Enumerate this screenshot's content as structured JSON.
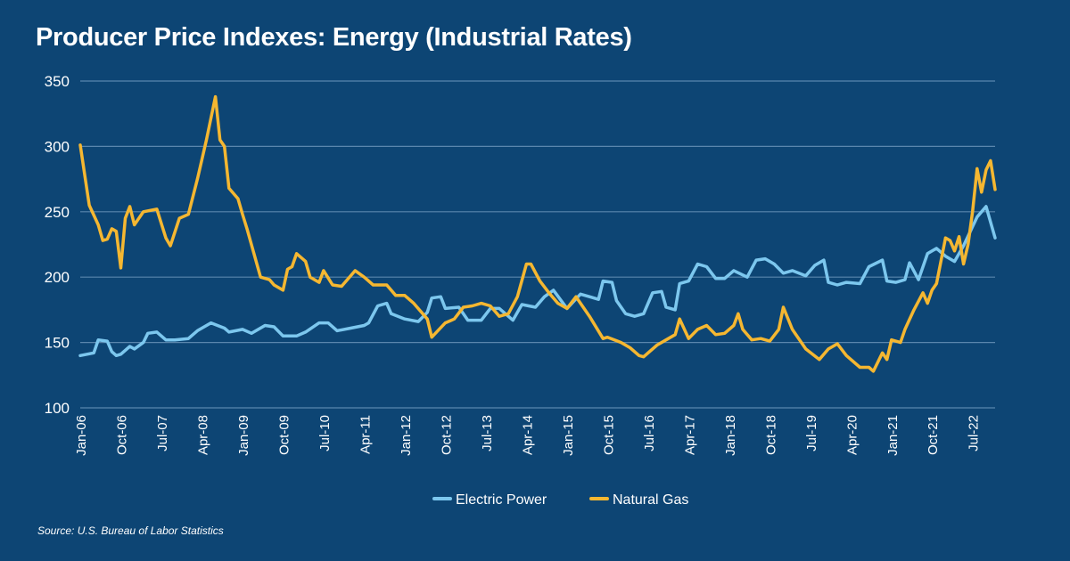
{
  "title": "Producer Price Indexes: Energy (Industrial Rates)",
  "source": "Source: U.S. Bureau of Labor Statistics",
  "colors": {
    "background": "#0d4574",
    "grid": "#5a86ad",
    "electric": "#7cc7ee",
    "gas": "#f5b731"
  },
  "chart_data": {
    "type": "line",
    "title": "Producer Price Indexes: Energy (Industrial Rates)",
    "xlabel": "",
    "ylabel": "",
    "ylim": [
      100,
      350
    ],
    "yticks": [
      100,
      150,
      200,
      250,
      300,
      350
    ],
    "grid": true,
    "legend_position": "bottom-center",
    "x_start": "Jan-06",
    "x_end": "Dec-22",
    "x_ticks": [
      "Jan-06",
      "Oct-06",
      "Jul-07",
      "Apr-08",
      "Jan-09",
      "Oct-09",
      "Jul-10",
      "Apr-11",
      "Jan-12",
      "Oct-12",
      "Jul-13",
      "Apr-14",
      "Jan-15",
      "Oct-15",
      "Jul-16",
      "Apr-17",
      "Jan-18",
      "Oct-18",
      "Jul-19",
      "Apr-20",
      "Jan-21",
      "Oct-21",
      "Jul-22"
    ],
    "series": [
      {
        "name": "Electric Power",
        "color": "#7cc7ee",
        "points": [
          [
            "Jan-06",
            140
          ],
          [
            "Apr-06",
            142
          ],
          [
            "May-06",
            152
          ],
          [
            "Jul-06",
            151
          ],
          [
            "Aug-06",
            143
          ],
          [
            "Sep-06",
            140
          ],
          [
            "Oct-06",
            141
          ],
          [
            "Dec-06",
            147
          ],
          [
            "Jan-07",
            145
          ],
          [
            "Mar-07",
            150
          ],
          [
            "Apr-07",
            157
          ],
          [
            "Jun-07",
            158
          ],
          [
            "Aug-07",
            152
          ],
          [
            "Oct-07",
            152
          ],
          [
            "Jan-08",
            153
          ],
          [
            "Mar-08",
            159
          ],
          [
            "Jun-08",
            165
          ],
          [
            "Sep-08",
            161
          ],
          [
            "Oct-08",
            158
          ],
          [
            "Jan-09",
            160
          ],
          [
            "Mar-09",
            157
          ],
          [
            "Jun-09",
            163
          ],
          [
            "Aug-09",
            162
          ],
          [
            "Oct-09",
            155
          ],
          [
            "Jan-10",
            155
          ],
          [
            "Mar-10",
            158
          ],
          [
            "Jun-10",
            165
          ],
          [
            "Aug-10",
            165
          ],
          [
            "Oct-10",
            159
          ],
          [
            "Jan-11",
            161
          ],
          [
            "Apr-11",
            163
          ],
          [
            "May-11",
            165
          ],
          [
            "Jul-11",
            178
          ],
          [
            "Sep-11",
            180
          ],
          [
            "Oct-11",
            172
          ],
          [
            "Jan-12",
            168
          ],
          [
            "Apr-12",
            166
          ],
          [
            "Jun-12",
            173
          ],
          [
            "Jul-12",
            184
          ],
          [
            "Sep-12",
            185
          ],
          [
            "Oct-12",
            176
          ],
          [
            "Jan-13",
            177
          ],
          [
            "Mar-13",
            167
          ],
          [
            "Jun-13",
            167
          ],
          [
            "Aug-13",
            176
          ],
          [
            "Oct-13",
            176
          ],
          [
            "Jan-14",
            167
          ],
          [
            "Mar-14",
            179
          ],
          [
            "Jun-14",
            177
          ],
          [
            "Aug-14",
            185
          ],
          [
            "Oct-14",
            190
          ],
          [
            "Jan-15",
            176
          ],
          [
            "Apr-15",
            187
          ],
          [
            "Jun-15",
            185
          ],
          [
            "Aug-15",
            183
          ],
          [
            "Sep-15",
            197
          ],
          [
            "Nov-15",
            196
          ],
          [
            "Dec-15",
            182
          ],
          [
            "Feb-16",
            172
          ],
          [
            "Apr-16",
            170
          ],
          [
            "Jun-16",
            172
          ],
          [
            "Aug-16",
            188
          ],
          [
            "Oct-16",
            189
          ],
          [
            "Nov-16",
            177
          ],
          [
            "Jan-17",
            175
          ],
          [
            "Feb-17",
            195
          ],
          [
            "Apr-17",
            197
          ],
          [
            "Jun-17",
            210
          ],
          [
            "Aug-17",
            208
          ],
          [
            "Oct-17",
            199
          ],
          [
            "Dec-17",
            199
          ],
          [
            "Feb-18",
            205
          ],
          [
            "May-18",
            200
          ],
          [
            "Jul-18",
            213
          ],
          [
            "Sep-18",
            214
          ],
          [
            "Nov-18",
            210
          ],
          [
            "Jan-19",
            203
          ],
          [
            "Mar-19",
            205
          ],
          [
            "Jun-19",
            201
          ],
          [
            "Aug-19",
            209
          ],
          [
            "Oct-19",
            213
          ],
          [
            "Nov-19",
            196
          ],
          [
            "Jan-20",
            194
          ],
          [
            "Mar-20",
            196
          ],
          [
            "Jun-20",
            195
          ],
          [
            "Aug-20",
            208
          ],
          [
            "Nov-20",
            213
          ],
          [
            "Dec-20",
            197
          ],
          [
            "Feb-21",
            196
          ],
          [
            "Apr-21",
            198
          ],
          [
            "May-21",
            211
          ],
          [
            "Jul-21",
            198
          ],
          [
            "Sep-21",
            218
          ],
          [
            "Nov-21",
            222
          ],
          [
            "Jan-22",
            216
          ],
          [
            "Mar-22",
            212
          ],
          [
            "May-22",
            224
          ],
          [
            "Aug-22",
            246
          ],
          [
            "Oct-22",
            254
          ],
          [
            "Dec-22",
            230
          ]
        ]
      },
      {
        "name": "Natural Gas",
        "color": "#f5b731",
        "points": [
          [
            "Jan-06",
            301
          ],
          [
            "Mar-06",
            255
          ],
          [
            "May-06",
            240
          ],
          [
            "Jun-06",
            228
          ],
          [
            "Jul-06",
            229
          ],
          [
            "Aug-06",
            237
          ],
          [
            "Sep-06",
            235
          ],
          [
            "Oct-06",
            207
          ],
          [
            "Nov-06",
            245
          ],
          [
            "Dec-06",
            254
          ],
          [
            "Jan-07",
            240
          ],
          [
            "Mar-07",
            250
          ],
          [
            "Jun-07",
            252
          ],
          [
            "Aug-07",
            230
          ],
          [
            "Sep-07",
            224
          ],
          [
            "Nov-07",
            245
          ],
          [
            "Jan-08",
            248
          ],
          [
            "Mar-08",
            275
          ],
          [
            "May-08",
            305
          ],
          [
            "Jul-08",
            338
          ],
          [
            "Aug-08",
            305
          ],
          [
            "Sep-08",
            300
          ],
          [
            "Oct-08",
            268
          ],
          [
            "Dec-08",
            260
          ],
          [
            "Jan-09",
            248
          ],
          [
            "Feb-09",
            237
          ],
          [
            "May-09",
            200
          ],
          [
            "Jul-09",
            198
          ],
          [
            "Aug-09",
            194
          ],
          [
            "Oct-09",
            190
          ],
          [
            "Nov-09",
            206
          ],
          [
            "Dec-09",
            208
          ],
          [
            "Jan-10",
            218
          ],
          [
            "Mar-10",
            212
          ],
          [
            "Apr-10",
            200
          ],
          [
            "Jun-10",
            196
          ],
          [
            "Jul-10",
            205
          ],
          [
            "Sep-10",
            194
          ],
          [
            "Nov-10",
            193
          ],
          [
            "Feb-11",
            205
          ],
          [
            "Apr-11",
            200
          ],
          [
            "Jun-11",
            194
          ],
          [
            "Sep-11",
            194
          ],
          [
            "Nov-11",
            186
          ],
          [
            "Jan-12",
            186
          ],
          [
            "Mar-12",
            180
          ],
          [
            "Jun-12",
            168
          ],
          [
            "Jul-12",
            154
          ],
          [
            "Oct-12",
            165
          ],
          [
            "Dec-12",
            168
          ],
          [
            "Feb-13",
            177
          ],
          [
            "Apr-13",
            178
          ],
          [
            "Jun-13",
            180
          ],
          [
            "Aug-13",
            178
          ],
          [
            "Oct-13",
            170
          ],
          [
            "Dec-13",
            172
          ],
          [
            "Feb-14",
            185
          ],
          [
            "Apr-14",
            210
          ],
          [
            "May-14",
            210
          ],
          [
            "Jul-14",
            197
          ],
          [
            "Sep-14",
            188
          ],
          [
            "Nov-14",
            180
          ],
          [
            "Jan-15",
            176
          ],
          [
            "Mar-15",
            185
          ],
          [
            "Jun-15",
            170
          ],
          [
            "Sep-15",
            153
          ],
          [
            "Oct-15",
            154
          ],
          [
            "Jan-16",
            150
          ],
          [
            "Mar-16",
            146
          ],
          [
            "May-16",
            140
          ],
          [
            "Jun-16",
            139
          ],
          [
            "Sep-16",
            148
          ],
          [
            "Nov-16",
            152
          ],
          [
            "Jan-17",
            156
          ],
          [
            "Feb-17",
            168
          ],
          [
            "Apr-17",
            153
          ],
          [
            "Jun-17",
            160
          ],
          [
            "Aug-17",
            163
          ],
          [
            "Oct-17",
            156
          ],
          [
            "Dec-17",
            157
          ],
          [
            "Feb-18",
            163
          ],
          [
            "Mar-18",
            172
          ],
          [
            "Apr-18",
            160
          ],
          [
            "Jun-18",
            152
          ],
          [
            "Aug-18",
            153
          ],
          [
            "Oct-18",
            151
          ],
          [
            "Dec-18",
            160
          ],
          [
            "Jan-19",
            177
          ],
          [
            "Mar-19",
            160
          ],
          [
            "Jun-19",
            145
          ],
          [
            "Sep-19",
            137
          ],
          [
            "Nov-19",
            145
          ],
          [
            "Jan-20",
            149
          ],
          [
            "Mar-20",
            140
          ],
          [
            "Jun-20",
            131
          ],
          [
            "Aug-20",
            131
          ],
          [
            "Sep-20",
            128
          ],
          [
            "Nov-20",
            142
          ],
          [
            "Dec-20",
            137
          ],
          [
            "Jan-21",
            152
          ],
          [
            "Mar-21",
            150
          ],
          [
            "Apr-21",
            160
          ],
          [
            "Jun-21",
            175
          ],
          [
            "Aug-21",
            188
          ],
          [
            "Sep-21",
            180
          ],
          [
            "Oct-21",
            190
          ],
          [
            "Nov-21",
            195
          ],
          [
            "Jan-22",
            230
          ],
          [
            "Feb-22",
            228
          ],
          [
            "Mar-22",
            220
          ],
          [
            "Apr-22",
            231
          ],
          [
            "May-22",
            210
          ],
          [
            "Jun-22",
            225
          ],
          [
            "Jul-22",
            250
          ],
          [
            "Aug-22",
            283
          ],
          [
            "Sep-22",
            265
          ],
          [
            "Oct-22",
            282
          ],
          [
            "Nov-22",
            289
          ],
          [
            "Dec-22",
            267
          ]
        ]
      }
    ]
  }
}
